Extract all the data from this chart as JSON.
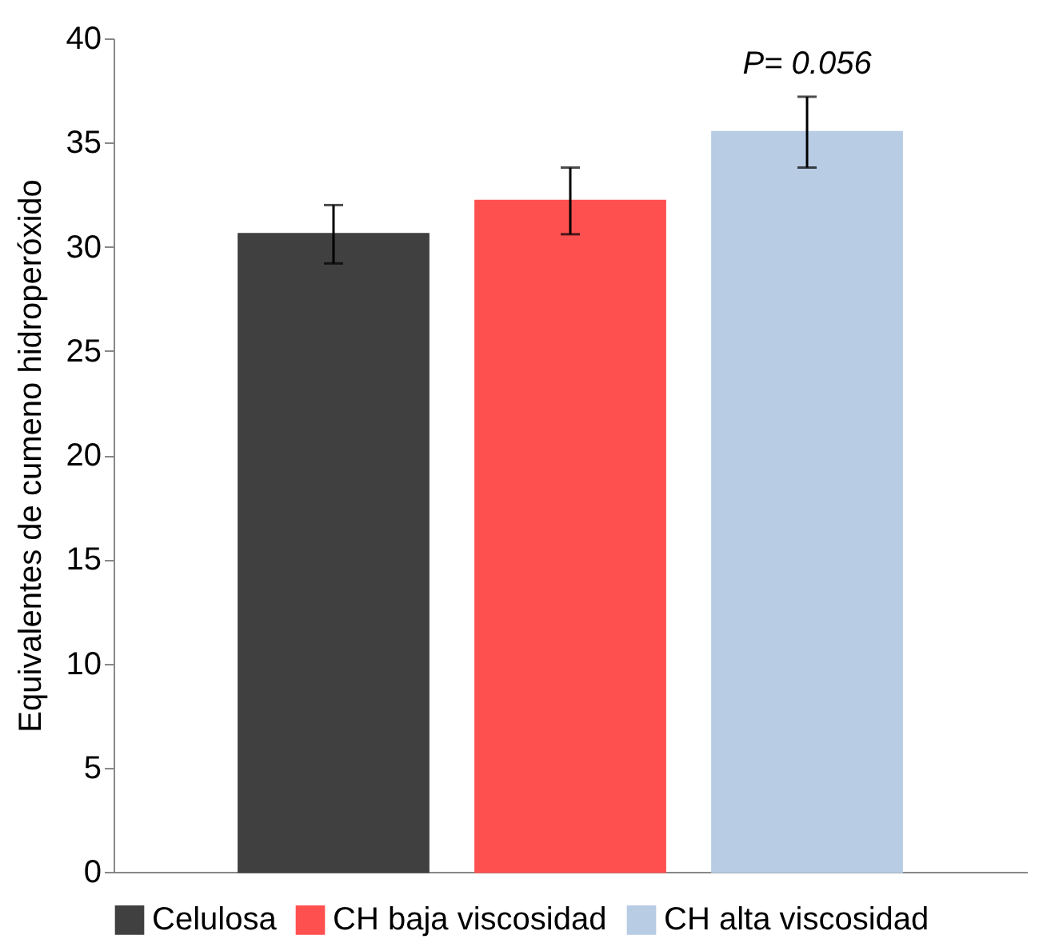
{
  "chart_data": {
    "type": "bar",
    "ylabel": "Equivalentes de cumeno hidroperóxido",
    "categories": [
      null
    ],
    "series": [
      {
        "name": "Celulosa",
        "color": "#404040",
        "values": [
          30.6
        ],
        "errors": [
          1.4
        ]
      },
      {
        "name": "CH baja viscosidad",
        "color": "#ff5050",
        "values": [
          32.2
        ],
        "errors": [
          1.6
        ]
      },
      {
        "name": "CH alta viscosidad",
        "color": "#b8cce4",
        "values": [
          35.5
        ],
        "errors": [
          1.7
        ]
      }
    ],
    "annotations": [
      "P= 0.056"
    ],
    "ylim": [
      0,
      40
    ],
    "yticks": [
      0,
      5,
      10,
      15,
      20,
      25,
      30,
      35,
      40
    ],
    "grid": false,
    "legend": "bottom"
  }
}
